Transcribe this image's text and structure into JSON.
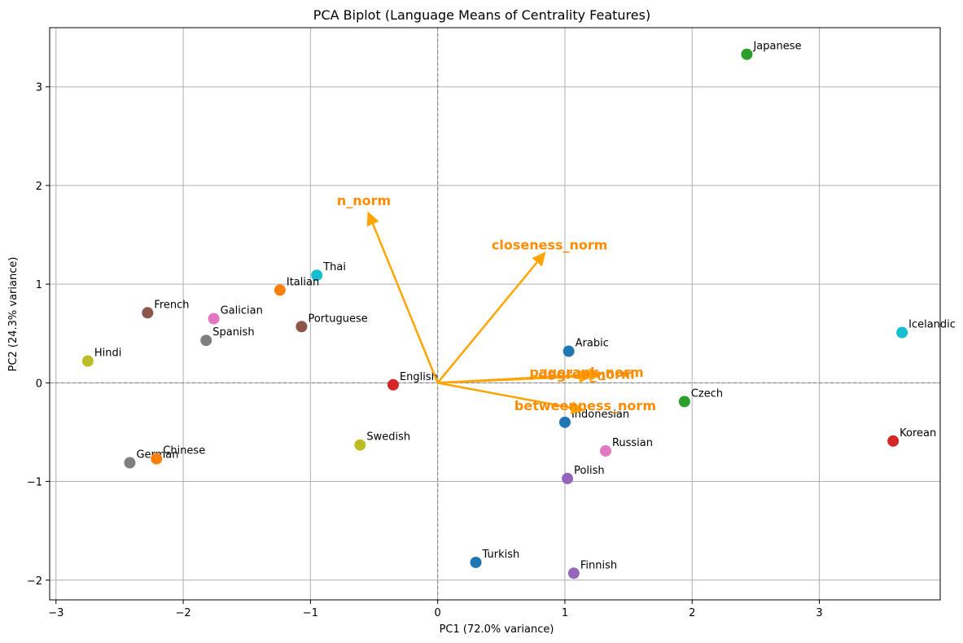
{
  "chart_data": {
    "type": "scatter",
    "title": "PCA Biplot (Language Means of Centrality Features)",
    "xlabel": "PC1 (72.0% variance)",
    "ylabel": "PC2 (24.3% variance)",
    "xlim": [
      -3.05,
      3.95
    ],
    "ylim": [
      -2.2,
      3.6
    ],
    "xticks": [
      -3,
      -2,
      -1,
      0,
      1,
      2,
      3
    ],
    "yticks": [
      -2,
      -1,
      0,
      1,
      2,
      3
    ],
    "xtick_labels": [
      "−3",
      "−2",
      "−1",
      "0",
      "1",
      "2",
      "3"
    ],
    "ytick_labels": [
      "−2",
      "−1",
      "0",
      "1",
      "2",
      "3"
    ],
    "grid": true,
    "zero_lines": true,
    "points": [
      {
        "name": "Japanese",
        "x": 2.43,
        "y": 3.33,
        "color": "#2ca02c"
      },
      {
        "name": "Icelandic",
        "x": 3.65,
        "y": 0.51,
        "color": "#17becf"
      },
      {
        "name": "Korean",
        "x": 3.58,
        "y": -0.59,
        "color": "#d62728"
      },
      {
        "name": "Czech",
        "x": 1.94,
        "y": -0.19,
        "color": "#2ca02c"
      },
      {
        "name": "Arabic",
        "x": 1.03,
        "y": 0.32,
        "color": "#1f77b4"
      },
      {
        "name": "Indonesian",
        "x": 1.0,
        "y": -0.4,
        "color": "#1f77b4"
      },
      {
        "name": "Russian",
        "x": 1.32,
        "y": -0.69,
        "color": "#e377c2"
      },
      {
        "name": "Polish",
        "x": 1.02,
        "y": -0.97,
        "color": "#9467bd"
      },
      {
        "name": "Finnish",
        "x": 1.07,
        "y": -1.93,
        "color": "#9467bd"
      },
      {
        "name": "Turkish",
        "x": 0.3,
        "y": -1.82,
        "color": "#1f77b4"
      },
      {
        "name": "Swedish",
        "x": -0.61,
        "y": -0.63,
        "color": "#bcbd22"
      },
      {
        "name": "English",
        "x": -0.35,
        "y": -0.02,
        "color": "#d62728"
      },
      {
        "name": "Thai",
        "x": -0.95,
        "y": 1.09,
        "color": "#17becf"
      },
      {
        "name": "Italian",
        "x": -1.24,
        "y": 0.94,
        "color": "#ff7f0e"
      },
      {
        "name": "Portuguese",
        "x": -1.07,
        "y": 0.57,
        "color": "#8c564b"
      },
      {
        "name": "Galician",
        "x": -1.76,
        "y": 0.65,
        "color": "#e377c2"
      },
      {
        "name": "Spanish",
        "x": -1.82,
        "y": 0.43,
        "color": "#7f7f7f"
      },
      {
        "name": "French",
        "x": -2.28,
        "y": 0.71,
        "color": "#8c564b"
      },
      {
        "name": "Hindi",
        "x": -2.75,
        "y": 0.22,
        "color": "#bcbd22"
      },
      {
        "name": "German",
        "x": -2.42,
        "y": -0.81,
        "color": "#7f7f7f"
      },
      {
        "name": "Chinese",
        "x": -2.21,
        "y": -0.77,
        "color": "#ff7f0e"
      }
    ],
    "loadings": [
      {
        "name": "n_norm",
        "x": -0.55,
        "y": 1.74,
        "label_x": -0.58,
        "label_y": 1.85
      },
      {
        "name": "closeness_norm",
        "x": 0.85,
        "y": 1.33,
        "label_x": 0.88,
        "label_y": 1.4
      },
      {
        "name": "pagerank_norm",
        "x": 1.22,
        "y": 0.07,
        "label_x": 1.17,
        "label_y": 0.11
      },
      {
        "name": "degree_norm",
        "x": 1.3,
        "y": 0.09,
        "label_x": 1.17,
        "label_y": 0.09
      },
      {
        "name": "betweenness_norm",
        "x": 1.16,
        "y": -0.28,
        "label_x": 1.16,
        "label_y": -0.23
      }
    ],
    "loading_color": "#ffa500",
    "loading_label_color": "#ff8c00"
  }
}
